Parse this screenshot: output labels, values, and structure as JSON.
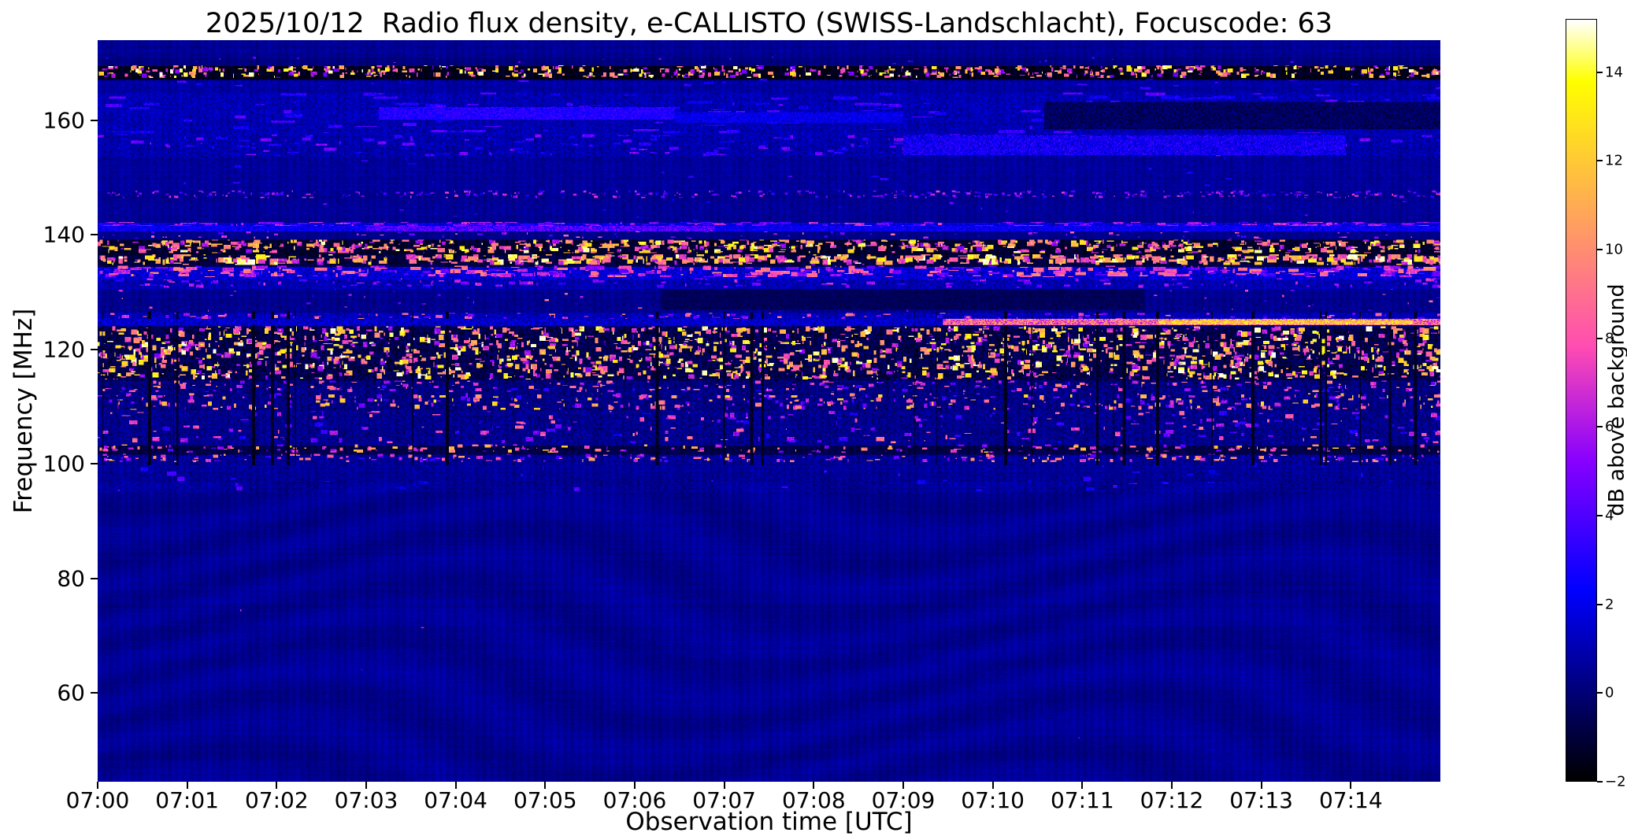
{
  "figure": {
    "title": "2025/10/12  Radio flux density, e-CALLISTO (SWISS-Landschlacht), Focuscode: 63",
    "xlabel": "Observation time [UTC]",
    "ylabel": "Frequency [MHz]",
    "colorbar_label": "dB above background"
  },
  "chart_data": {
    "type": "heatmap",
    "title": "2025/10/12  Radio flux density, e-CALLISTO (SWISS-Landschlacht), Focuscode: 63",
    "xlabel": "Observation time [UTC]",
    "ylabel": "Frequency [MHz]",
    "x_ticks": [
      "07:00",
      "07:01",
      "07:02",
      "07:03",
      "07:04",
      "07:05",
      "07:06",
      "07:07",
      "07:08",
      "07:09",
      "07:10",
      "07:11",
      "07:12",
      "07:13",
      "07:14"
    ],
    "x_range_minutes": [
      0,
      15
    ],
    "y_ticks": [
      60,
      80,
      100,
      120,
      140,
      160
    ],
    "y_range_mhz": [
      44.5,
      174.0
    ],
    "colorbar": {
      "label": "dB above background",
      "ticks": [
        -2,
        0,
        2,
        4,
        6,
        8,
        10,
        12,
        14
      ],
      "range": [
        -2,
        15.2
      ],
      "colormap": "gnuplot2"
    },
    "grid": false,
    "features": [
      "Dashed bright interference channel around 167-169 MHz on black background",
      "Mottled blue band 154-165 MHz with enhanced streak near 161 MHz around 07:03-07:06 and darker patch after 07:10",
      "Thin bright carrier line near 141 MHz across full duration",
      "Strong bursty RFI bands 133-139 MHz with yellow/orange dashes",
      "Bright carrier line near 124.8 MHz, intense (pink/white) after ~07:09",
      "Dense broadband speckle 115-124 MHz (black background, saturated blobs)",
      "Scattered bright spots 100-114 MHz, dark channel near 102 MHz",
      "Smooth quiet blue background with faint ripples below 95 MHz"
    ],
    "bands": [
      {
        "f": [
          171.0,
          174.0
        ],
        "base": 0.45,
        "noise": 0.4,
        "p": 0,
        "s": [
          0,
          0
        ],
        "dash": 1,
        "thick": 1
      },
      {
        "f": [
          169.6,
          171.0
        ],
        "base": 0.05,
        "noise": 0.3,
        "p": 0.02,
        "s": [
          2,
          5
        ],
        "dash": 3,
        "thick": 2
      },
      {
        "f": [
          167.2,
          169.6
        ],
        "base": -1.5,
        "noise": 0.4,
        "p": 0.5,
        "s": [
          4,
          15.5
        ],
        "dash": 5,
        "thick": 4
      },
      {
        "f": [
          165.0,
          167.2
        ],
        "base": 0.7,
        "noise": 0.6,
        "p": 0.02,
        "s": [
          2,
          4
        ],
        "dash": 10,
        "thick": 2
      },
      {
        "f": [
          157.5,
          165.0
        ],
        "base": 1.0,
        "noise": 0.85,
        "p": 0.12,
        "s": [
          2,
          4.5
        ],
        "dash": 25,
        "thick": 3
      },
      {
        "f": [
          153.5,
          157.5
        ],
        "base": 0.85,
        "noise": 0.9,
        "p": 0.15,
        "s": [
          2,
          5.5
        ],
        "dash": 12,
        "thick": 3
      },
      {
        "f": [
          147.8,
          153.5
        ],
        "base": 0.6,
        "noise": 0.5,
        "p": 0.015,
        "s": [
          2,
          4
        ],
        "dash": 8,
        "thick": 2
      },
      {
        "f": [
          146.3,
          147.8
        ],
        "base": 0.4,
        "noise": 0.5,
        "p": 0.3,
        "s": [
          2.5,
          7.5
        ],
        "dash": 4,
        "thick": 2
      },
      {
        "f": [
          142.2,
          146.3
        ],
        "base": 0.5,
        "noise": 0.4,
        "p": 0.015,
        "s": [
          2,
          5
        ],
        "dash": 4,
        "thick": 2
      },
      {
        "f": [
          140.7,
          142.2
        ],
        "base": 1.8,
        "noise": 1.0,
        "p": 0.3,
        "s": [
          3,
          7
        ],
        "dash": 15,
        "thick": 2
      },
      {
        "f": [
          139.2,
          140.7
        ],
        "base": 0.3,
        "noise": 0.4,
        "p": 0.06,
        "s": [
          3,
          9
        ],
        "dash": 5,
        "thick": 2
      },
      {
        "f": [
          136.6,
          139.2
        ],
        "base": -1.2,
        "noise": 0.6,
        "p": 0.55,
        "s": [
          5,
          15
        ],
        "dash": 7,
        "thick": 4
      },
      {
        "f": [
          134.6,
          136.6
        ],
        "base": -0.9,
        "noise": 0.7,
        "p": 0.45,
        "s": [
          6,
          15.5
        ],
        "dash": 9,
        "thick": 5
      },
      {
        "f": [
          132.4,
          134.6
        ],
        "base": 1.6,
        "noise": 1.2,
        "p": 0.28,
        "s": [
          4,
          10
        ],
        "dash": 12,
        "thick": 4
      },
      {
        "f": [
          130.6,
          132.4
        ],
        "base": 1.0,
        "noise": 0.8,
        "p": 0.1,
        "s": [
          3,
          7
        ],
        "dash": 8,
        "thick": 3
      },
      {
        "f": [
          126.4,
          130.6
        ],
        "base": 0.4,
        "noise": 0.5,
        "p": 0.05,
        "s": [
          3,
          9.5
        ],
        "dash": 4,
        "thick": 2
      },
      {
        "f": [
          124.1,
          126.4
        ],
        "base": 1.1,
        "noise": 1.0,
        "p": 0.18,
        "s": [
          3.5,
          10
        ],
        "dash": 7,
        "thick": 3
      },
      {
        "f": [
          114.6,
          124.1
        ],
        "base": -0.7,
        "noise": 1.0,
        "p": 1.5,
        "s": [
          5,
          15.5
        ],
        "dash": 6,
        "thick": 5
      },
      {
        "f": [
          112.3,
          114.6
        ],
        "base": 0.1,
        "noise": 0.9,
        "p": 0.2,
        "s": [
          3,
          10.5
        ],
        "dash": 6,
        "thick": 3
      },
      {
        "f": [
          109.3,
          112.3
        ],
        "base": 0.2,
        "noise": 0.9,
        "p": 0.3,
        "s": [
          3,
          13
        ],
        "dash": 6,
        "thick": 4
      },
      {
        "f": [
          103.4,
          109.3
        ],
        "base": 0.35,
        "noise": 0.9,
        "p": 0.18,
        "s": [
          2.5,
          9.5
        ],
        "dash": 8,
        "thick": 4
      },
      {
        "f": [
          101.7,
          103.4
        ],
        "base": -0.8,
        "noise": 0.5,
        "p": 0.15,
        "s": [
          4,
          12.5
        ],
        "dash": 6,
        "thick": 3
      },
      {
        "f": [
          100.2,
          101.7
        ],
        "base": 0.5,
        "noise": 0.8,
        "p": 0.18,
        "s": [
          3,
          11.5
        ],
        "dash": 6,
        "thick": 3
      },
      {
        "f": [
          95.0,
          100.2
        ],
        "base": 0.55,
        "noise": 0.65,
        "p": 0.03,
        "s": [
          1.5,
          4.5
        ],
        "dash": 10,
        "thick": 4
      },
      {
        "f": [
          44.5,
          95.0
        ],
        "base": 0.45,
        "noise": 0.3,
        "p": 0.004,
        "s": [
          2,
          7
        ],
        "dash": 3,
        "thick": 2
      }
    ],
    "overlays": [
      {
        "f": [
          160.3,
          162.3
        ],
        "x": [
          0.21,
          0.43
        ],
        "v": 3.0,
        "vn": 1.0
      },
      {
        "f": [
          159.8,
          161.5
        ],
        "x": [
          0.43,
          0.6
        ],
        "v": 2.0,
        "vn": 0.9
      },
      {
        "f": [
          158.6,
          163.3
        ],
        "x": [
          0.705,
          1.0
        ],
        "v": -0.4,
        "vn": 0.9
      },
      {
        "f": [
          154.2,
          157.4
        ],
        "x": [
          0.6,
          0.93
        ],
        "v": 2.4,
        "vn": 1.5
      },
      {
        "f": [
          140.8,
          141.5
        ],
        "x": [
          0.0,
          1.0
        ],
        "v": 2.2,
        "vn": 1.0
      },
      {
        "f": [
          140.8,
          141.6
        ],
        "x": [
          0.2,
          0.46
        ],
        "v": 4.0,
        "vn": 1.8
      },
      {
        "f": [
          127.2,
          130.6
        ],
        "x": [
          0.42,
          0.78
        ],
        "v": -0.5,
        "vn": 0.5
      },
      {
        "f": [
          124.4,
          125.3
        ],
        "x": [
          0.0,
          0.63
        ],
        "v": 1.4,
        "vn": 1.2
      },
      {
        "f": [
          124.4,
          125.3
        ],
        "x": [
          0.63,
          1.0
        ],
        "v": 8.5,
        "vn": 3.0
      },
      {
        "f": [
          124.5,
          125.1
        ],
        "x": [
          0.79,
          0.98
        ],
        "v": 12.0,
        "vn": 2.5
      }
    ],
    "vstreaks": {
      "count": 30,
      "f": [
        100.0,
        126.5
      ],
      "v": -1.4,
      "vn": 0.5,
      "wmax": 3
    }
  }
}
